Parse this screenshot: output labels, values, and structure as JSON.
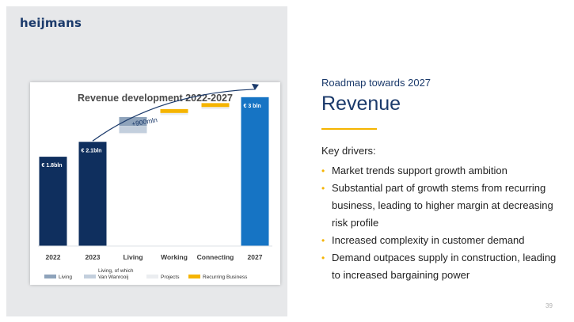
{
  "brand": {
    "logo_text": "heijmans"
  },
  "slide": {
    "subtitle": "Roadmap towards 2027",
    "title": "Revenue",
    "drivers_heading": "Key drivers:",
    "bullets": [
      "Market trends support growth ambition",
      "Substantial part of growth stems from recurring business, leading to higher margin at decreasing risk profile",
      "Increased complexity in customer demand",
      "Demand outpaces supply in construction, leading to increased bargaining power"
    ],
    "page_number": "39"
  },
  "colors": {
    "navy": "#0f2f5e",
    "blue_2027": "#1674c4",
    "living": "#8ea3bb",
    "living_wanrooij": "#c3cfdd",
    "projects": "#ebedf0",
    "recurring": "#f5b400",
    "arrow": "#1b3a6b",
    "accent": "#f5b400"
  },
  "chart_data": {
    "type": "waterfall",
    "title": "Revenue development 2022-2027",
    "unit": "€ bln",
    "categories": [
      "2022",
      "2023",
      "Living",
      "Working",
      "Connecting",
      "2027"
    ],
    "totals": [
      {
        "category": "2022",
        "value": 1.8,
        "label": "€ 1.8bln"
      },
      {
        "category": "2023",
        "value": 2.1,
        "label": "€ 2.1bln"
      },
      {
        "category": "2027",
        "value": 3.0,
        "label": "€ 3 bln"
      }
    ],
    "increments": [
      {
        "category": "Living",
        "segments": [
          {
            "series": "Living",
            "start": 2.42,
            "end": 2.6
          },
          {
            "series": "Living, of which Van Wanrooij",
            "start": 2.28,
            "end": 2.42
          },
          {
            "series": "Projects",
            "start": 2.26,
            "end": 2.28
          }
        ]
      },
      {
        "category": "Working",
        "segments": [
          {
            "series": "Recurring Business",
            "start": 2.68,
            "end": 2.76
          },
          {
            "series": "Projects",
            "start": 2.64,
            "end": 2.68
          }
        ]
      },
      {
        "category": "Connecting",
        "segments": [
          {
            "series": "Recurring Business",
            "start": 2.8,
            "end": 2.88
          },
          {
            "series": "Projects",
            "start": 2.76,
            "end": 2.8
          }
        ]
      }
    ],
    "annotation": {
      "text": "+900mln",
      "from": "2023",
      "to": "2027"
    },
    "legend": [
      {
        "name": "Living",
        "color": "#8ea3bb"
      },
      {
        "name": "Living, of which Van Wanrooij",
        "color": "#c3cfdd"
      },
      {
        "name": "Projects",
        "color": "#ebedf0"
      },
      {
        "name": "Recurring Business",
        "color": "#f5b400"
      }
    ],
    "legend_position": "bottom",
    "ylim": [
      0,
      3.3
    ],
    "grid": false
  }
}
